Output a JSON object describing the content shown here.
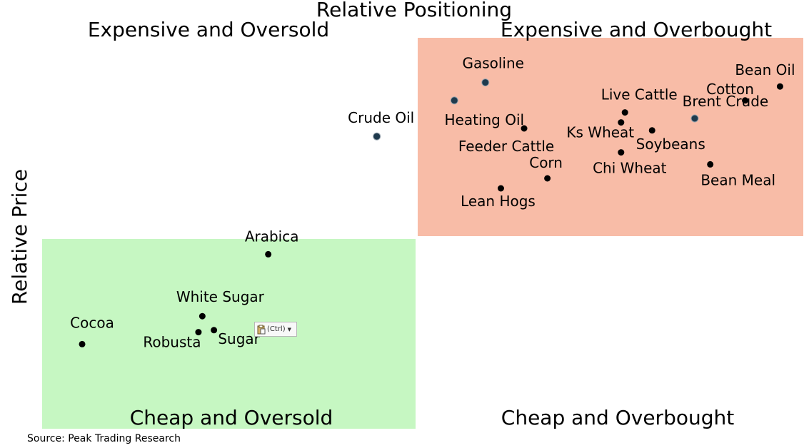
{
  "chart_data": {
    "type": "scatter",
    "title": "Relative Positioning",
    "ylabel": "Relative Price",
    "xlim": [
      0,
      10
    ],
    "ylim": [
      0,
      10
    ],
    "quadrants": {
      "top_left": "Expensive and Oversold",
      "top_right": "Expensive and Overbought",
      "bottom_left": "Cheap and Oversold",
      "bottom_right": "Cheap and Overbought"
    },
    "colors": {
      "overbought_fill": "#f8bca7",
      "oversold_fill": "#c6f7c2",
      "point": "#000000",
      "highlight_point": "#1f3a4d"
    },
    "points": [
      {
        "label": "Gasoline",
        "x": 5.9,
        "y": 8.65
      },
      {
        "label": "Heating Oil",
        "x": 5.5,
        "y": 8.2
      },
      {
        "label": "Crude Oil",
        "x": 4.5,
        "y": 7.3
      },
      {
        "label": "Bean Oil",
        "x": 9.7,
        "y": 8.55
      },
      {
        "label": "Cotton",
        "x": 9.25,
        "y": 8.2
      },
      {
        "label": "Brent Crude",
        "x": 8.6,
        "y": 7.75
      },
      {
        "label": "Live Cattle",
        "x": 7.7,
        "y": 7.9
      },
      {
        "label": "Ks Wheat",
        "x": 7.65,
        "y": 7.65
      },
      {
        "label": "Soybeans",
        "x": 8.05,
        "y": 7.45
      },
      {
        "label": "Feeder Cattle",
        "x": 6.4,
        "y": 7.5
      },
      {
        "label": "Chi Wheat",
        "x": 7.65,
        "y": 6.9
      },
      {
        "label": "Corn",
        "x": 6.7,
        "y": 6.25
      },
      {
        "label": "Lean Hogs",
        "x": 6.1,
        "y": 6.0
      },
      {
        "label": "Bean Meal",
        "x": 8.8,
        "y": 6.6
      },
      {
        "label": "Arabica",
        "x": 3.1,
        "y": 4.35
      },
      {
        "label": "White Sugar",
        "x": 2.25,
        "y": 2.8
      },
      {
        "label": "Sugar",
        "x": 2.4,
        "y": 2.45
      },
      {
        "label": "Robusta",
        "x": 2.2,
        "y": 2.4
      },
      {
        "label": "Cocoa",
        "x": 0.7,
        "y": 2.1
      }
    ],
    "grid": false,
    "legend": "none"
  },
  "footer": {
    "source": "Source: Peak Trading Research"
  },
  "paste_options": {
    "label": "(Ctrl)"
  }
}
